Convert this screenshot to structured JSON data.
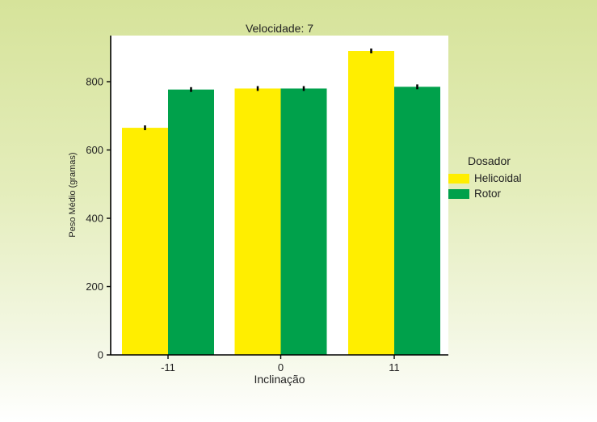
{
  "chart_data": {
    "type": "bar",
    "title": "Velocidade: 7",
    "xlabel": "Inclinação",
    "ylabel": "Peso Médio (gramas)",
    "categories": [
      "-11",
      "0",
      "11"
    ],
    "series": [
      {
        "name": "Helicoidal",
        "color": "#ffee00",
        "values": [
          665,
          780,
          890
        ],
        "errors": [
          7,
          7,
          7
        ]
      },
      {
        "name": "Rotor",
        "color": "#00a14b",
        "values": [
          777,
          780,
          785
        ],
        "errors": [
          7,
          7,
          7
        ]
      }
    ],
    "ylim": [
      0,
      935
    ],
    "yticks": [
      0,
      200,
      400,
      600,
      800
    ],
    "grid": false,
    "legend": {
      "title": "Dosador",
      "position": "right"
    }
  }
}
